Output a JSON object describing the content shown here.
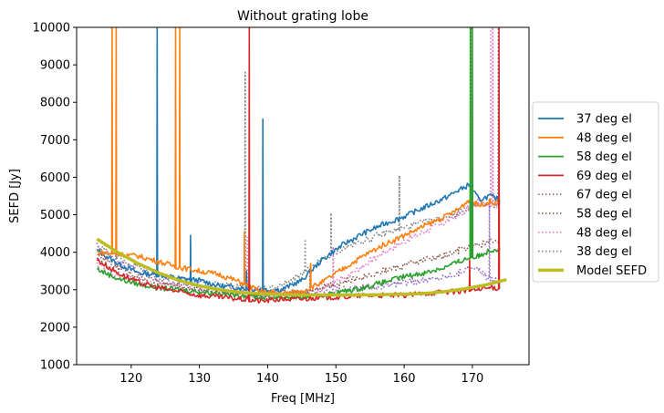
{
  "chart_data": {
    "type": "line",
    "title": "Without grating lobe",
    "xlabel": "Freq [MHz]",
    "ylabel": "SEFD [Jy]",
    "xlim": [
      112,
      178.3
    ],
    "ylim": [
      1000,
      10000
    ],
    "xticks": [
      120,
      130,
      140,
      150,
      160,
      170
    ],
    "yticks": [
      1000,
      2000,
      3000,
      4000,
      5000,
      6000,
      7000,
      8000,
      9000,
      10000
    ],
    "grid": false,
    "legend_position": "outside-right",
    "series": [
      {
        "name": "37 deg el",
        "color": "#1f77b4",
        "style": "solid",
        "x": [
          115,
          118,
          121,
          124,
          127,
          130,
          133,
          136,
          139,
          142,
          145,
          148,
          151,
          154,
          157,
          160,
          163,
          166,
          168,
          169.5,
          171,
          172.5,
          174
        ],
        "y": [
          4050,
          3700,
          3450,
          3400,
          3300,
          3250,
          3100,
          3050,
          3000,
          3000,
          3250,
          3800,
          4200,
          4500,
          4750,
          4950,
          5200,
          5450,
          5650,
          5800,
          5400,
          5500,
          5400
        ],
        "spikes": [
          [
            123.8,
            10000
          ],
          [
            128.7,
            4450
          ],
          [
            139.3,
            7550
          ],
          [
            136.9,
            3500
          ]
        ]
      },
      {
        "name": "48 deg el",
        "color": "#ff7f0e",
        "style": "solid",
        "x": [
          115,
          118,
          121,
          124,
          127,
          130,
          133,
          136,
          139,
          142,
          145,
          148,
          151,
          154,
          157,
          160,
          163,
          166,
          168,
          169.5,
          171,
          172.5,
          174
        ],
        "y": [
          4000,
          3950,
          3900,
          3750,
          3600,
          3500,
          3400,
          3200,
          2950,
          2900,
          2950,
          3200,
          3550,
          3900,
          4200,
          4450,
          4700,
          4950,
          5150,
          5400,
          5250,
          5350,
          5300
        ],
        "spikes": [
          [
            117.2,
            10000
          ],
          [
            117.8,
            10000
          ],
          [
            126.5,
            10000
          ],
          [
            127.1,
            10000
          ],
          [
            136.6,
            4550
          ],
          [
            146.3,
            3700
          ]
        ]
      },
      {
        "name": "58 deg el",
        "color": "#2ca02c",
        "style": "solid",
        "x": [
          115,
          118,
          121,
          124,
          127,
          130,
          133,
          136,
          139,
          142,
          145,
          148,
          151,
          154,
          157,
          160,
          163,
          166,
          168,
          169.5,
          171,
          172.5,
          174
        ],
        "y": [
          3550,
          3300,
          3150,
          3050,
          3000,
          2950,
          2900,
          2850,
          2800,
          2800,
          2800,
          2850,
          2950,
          3050,
          3200,
          3350,
          3450,
          3600,
          3750,
          3850,
          3900,
          4050,
          4100
        ],
        "spikes": [
          [
            169.7,
            10000
          ],
          [
            170.0,
            10000
          ]
        ]
      },
      {
        "name": "69 deg el",
        "color": "#d62728",
        "style": "solid",
        "x": [
          115,
          118,
          121,
          124,
          127,
          130,
          133,
          136,
          139,
          142,
          145,
          148,
          151,
          154,
          157,
          160,
          163,
          166,
          168,
          169.5,
          171,
          172.5,
          174
        ],
        "y": [
          3800,
          3450,
          3200,
          3050,
          2950,
          2850,
          2800,
          2750,
          2700,
          2750,
          2750,
          2800,
          2800,
          2850,
          2850,
          2850,
          2900,
          2950,
          2950,
          3000,
          3000,
          3050,
          3050
        ],
        "spikes": [
          [
            137.3,
            10000
          ],
          [
            169.6,
            3800
          ],
          [
            173.9,
            10000
          ]
        ]
      },
      {
        "name": "67 deg el",
        "color": "#9467bd",
        "style": "dotted",
        "x": [
          115,
          118,
          121,
          124,
          127,
          130,
          133,
          136,
          139,
          142,
          145,
          148,
          151,
          154,
          157,
          160,
          163,
          166,
          168,
          169.5,
          171,
          172.5,
          174
        ],
        "y": [
          4100,
          3750,
          3500,
          3300,
          3150,
          3050,
          3000,
          2950,
          2900,
          2900,
          2900,
          2950,
          3000,
          3050,
          3100,
          3200,
          3250,
          3350,
          3450,
          3600,
          3500,
          3300,
          3250
        ],
        "spikes": [
          [
            172.5,
            5400
          ]
        ]
      },
      {
        "name": "58 deg el",
        "color": "#8c564b",
        "style": "dotted",
        "x": [
          115,
          118,
          121,
          124,
          127,
          130,
          133,
          136,
          139,
          142,
          145,
          148,
          151,
          154,
          157,
          160,
          163,
          166,
          168,
          169.5,
          171,
          172.5,
          174
        ],
        "y": [
          3900,
          3600,
          3350,
          3200,
          3100,
          3000,
          2950,
          2900,
          2900,
          2900,
          2950,
          3100,
          3200,
          3350,
          3500,
          3650,
          3800,
          3900,
          4050,
          4150,
          4200,
          4300,
          4350
        ],
        "spikes": [
          [
            146.2,
            3600
          ],
          [
            157.3,
            3600
          ]
        ]
      },
      {
        "name": "48 deg el",
        "color": "#e377c2",
        "style": "dotted",
        "x": [
          115,
          118,
          121,
          124,
          127,
          130,
          133,
          136,
          139,
          142,
          145,
          148,
          151,
          154,
          157,
          160,
          163,
          166,
          168,
          169.5,
          171,
          172.5,
          174
        ],
        "y": [
          3650,
          3400,
          3250,
          3150,
          3050,
          3000,
          2950,
          2850,
          2850,
          2850,
          2850,
          3000,
          3300,
          3650,
          4000,
          4300,
          4550,
          4800,
          5000,
          5200,
          5350,
          5300,
          5250
        ],
        "spikes": [
          [
            137.0,
            4400
          ],
          [
            149.6,
            4150
          ],
          [
            172.7,
            10000
          ],
          [
            173.0,
            10000
          ]
        ]
      },
      {
        "name": "38 deg el",
        "color": "#7f7f7f",
        "style": "dotted",
        "x": [
          115,
          118,
          121,
          124,
          127,
          130,
          133,
          136,
          139,
          142,
          145,
          148,
          151,
          154,
          157,
          160,
          163,
          166,
          168,
          169.5,
          171,
          172.5,
          174
        ],
        "y": [
          4200,
          3850,
          3600,
          3450,
          3300,
          3200,
          3150,
          3050,
          3000,
          3100,
          3400,
          3800,
          4100,
          4300,
          4500,
          4650,
          4800,
          4950,
          5050,
          5150,
          5250,
          5250,
          5300
        ],
        "spikes": [
          [
            117.8,
            4100
          ],
          [
            136.7,
            8800
          ],
          [
            145.5,
            4350
          ],
          [
            149.3,
            5050
          ],
          [
            159.3,
            6050
          ],
          [
            169.8,
            10000
          ],
          [
            173.8,
            10000
          ]
        ]
      },
      {
        "name": "Model SEFD",
        "color": "#bcbd22",
        "style": "thick",
        "x": [
          115,
          118,
          121,
          124,
          127,
          130,
          133,
          136,
          139,
          142,
          145,
          148,
          151,
          154,
          157,
          160,
          163,
          166,
          169,
          172,
          175
        ],
        "y": [
          4350,
          4000,
          3700,
          3450,
          3250,
          3100,
          3000,
          2930,
          2890,
          2870,
          2860,
          2860,
          2860,
          2860,
          2870,
          2880,
          2900,
          2950,
          3030,
          3130,
          3270
        ],
        "spikes": []
      }
    ]
  }
}
